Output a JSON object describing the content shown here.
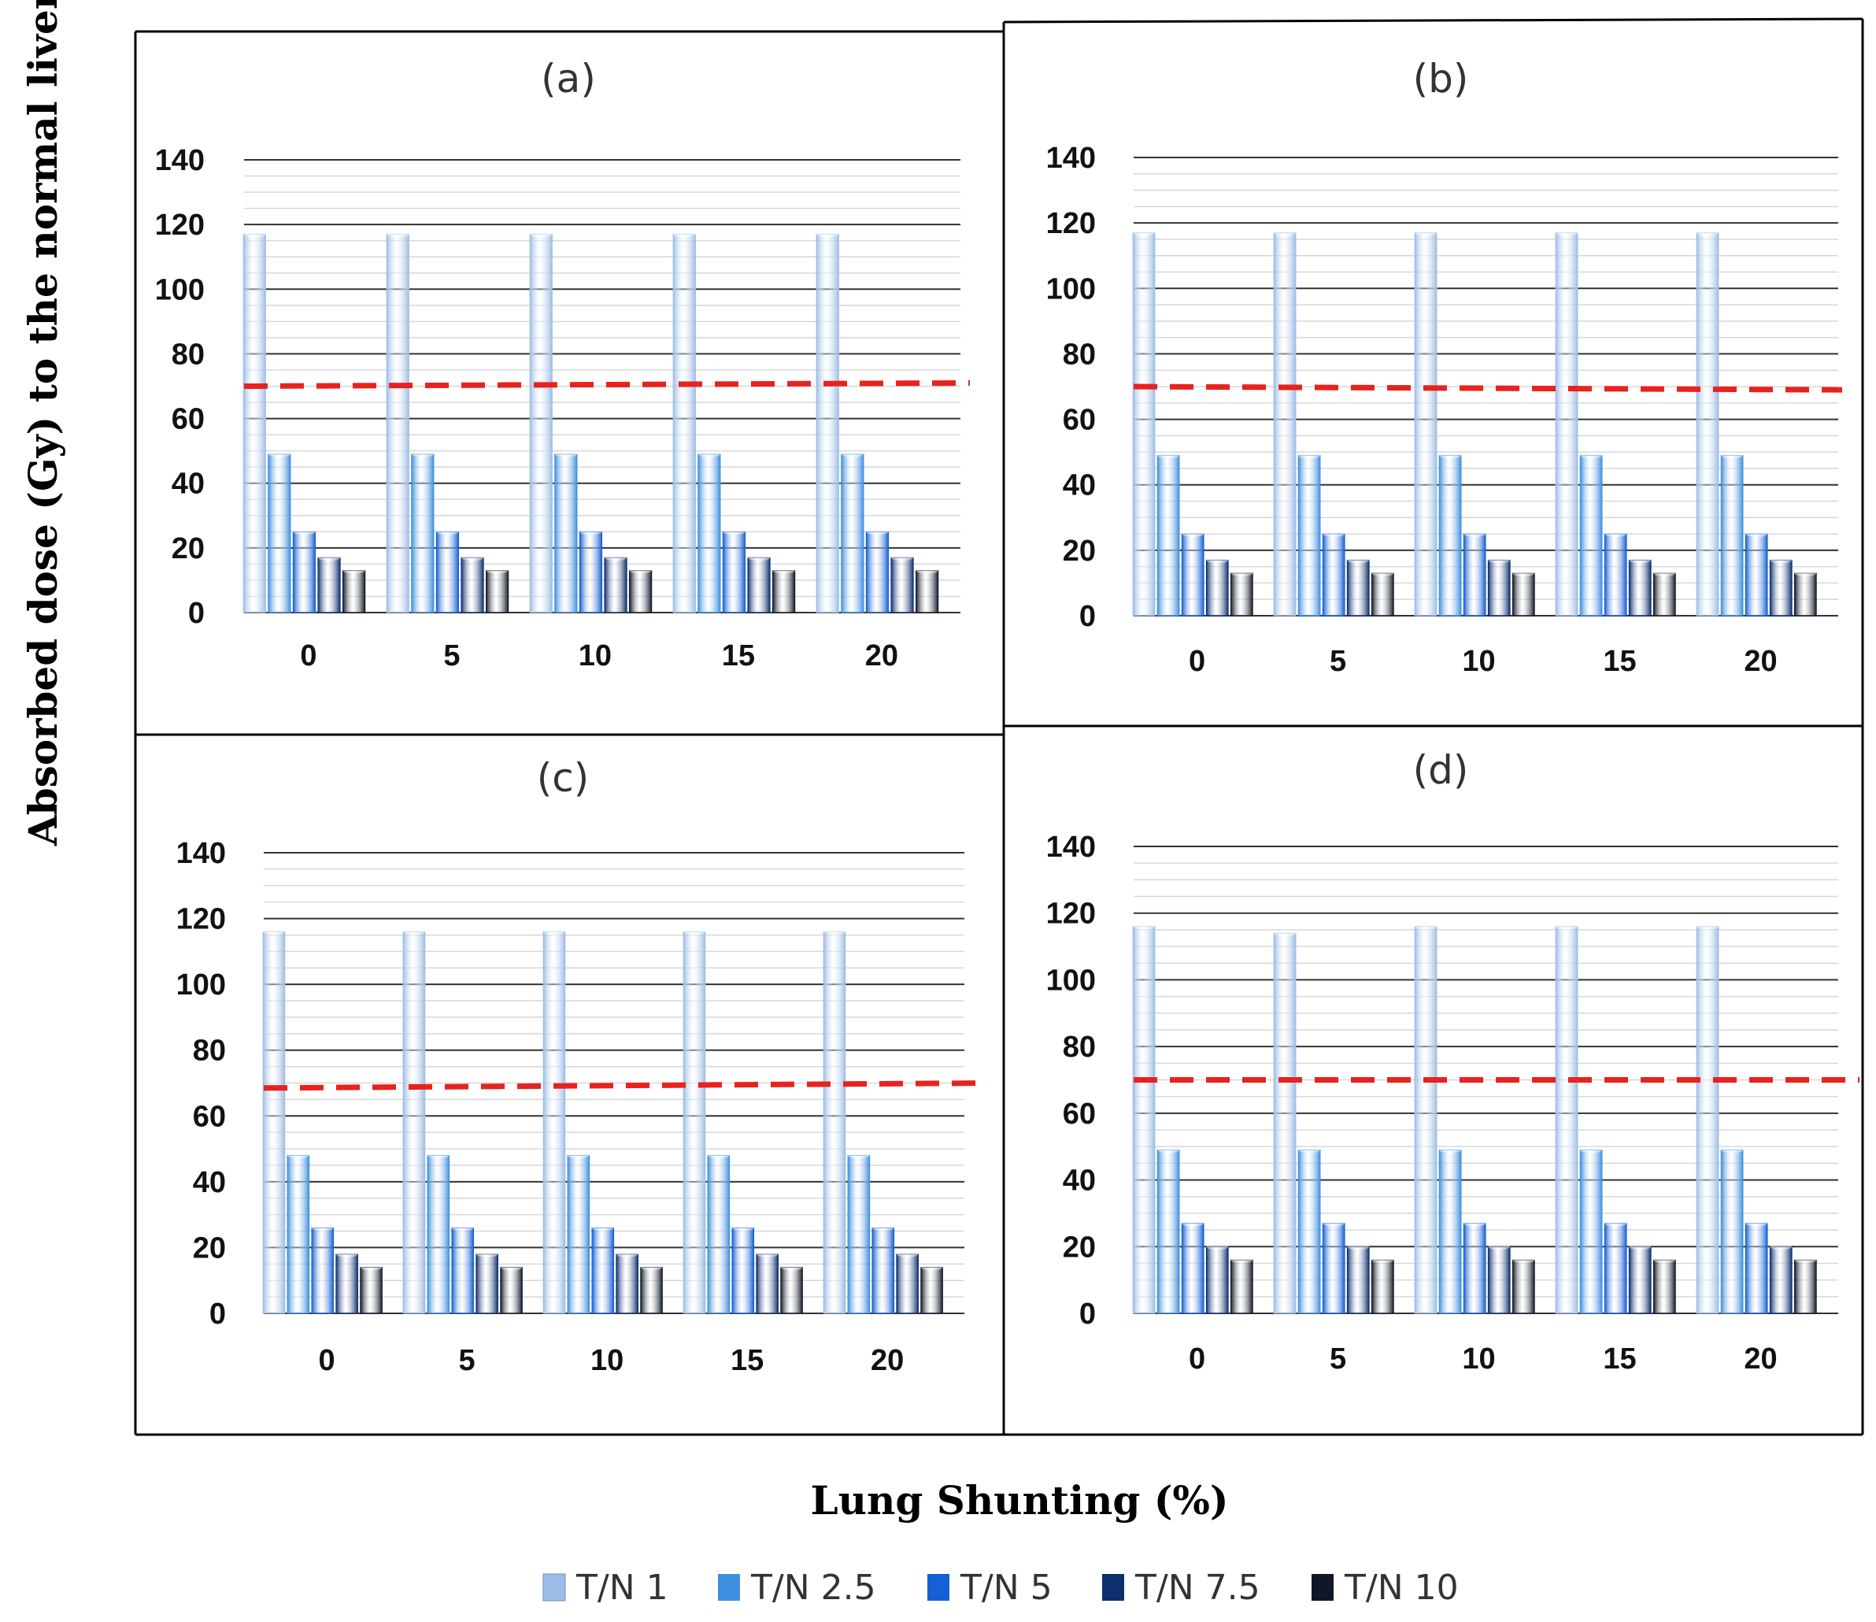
{
  "colors": {
    "series": [
      "#9dbde6",
      "#3f8fe0",
      "#1560d4",
      "#0e2f6e",
      "#101828"
    ],
    "threshold": "#e8221e",
    "grid": "#333333"
  },
  "axes": {
    "ylabel": "Absorbed dose (Gy) to the normal liver",
    "xlabel": "Lung Shunting (%)"
  },
  "chart_data": [
    {
      "type": "bar",
      "title": "(a)",
      "categories": [
        "0",
        "5",
        "10",
        "15",
        "20"
      ],
      "yticks": [
        "0",
        "20",
        "40",
        "60",
        "80",
        "100",
        "120",
        "140"
      ],
      "ylim": [
        0,
        140
      ],
      "series": [
        {
          "name": "T/N 1",
          "values": [
            117,
            117,
            117,
            117,
            117
          ]
        },
        {
          "name": "T/N 2.5",
          "values": [
            49,
            49,
            49,
            49,
            49
          ]
        },
        {
          "name": "T/N 5",
          "values": [
            25,
            25,
            25,
            25,
            25
          ]
        },
        {
          "name": "T/N 7.5",
          "values": [
            17,
            17,
            17,
            17,
            17
          ]
        },
        {
          "name": "T/N 10",
          "values": [
            13,
            13,
            13,
            13,
            13
          ]
        }
      ],
      "threshold": {
        "start": 70,
        "end": 71
      }
    },
    {
      "type": "bar",
      "title": "(b)",
      "categories": [
        "0",
        "5",
        "10",
        "15",
        "20"
      ],
      "yticks": [
        "0",
        "20",
        "40",
        "60",
        "80",
        "100",
        "120",
        "140"
      ],
      "ylim": [
        0,
        140
      ],
      "series": [
        {
          "name": "T/N 1",
          "values": [
            117,
            117,
            117,
            117,
            117
          ]
        },
        {
          "name": "T/N 2.5",
          "values": [
            49,
            49,
            49,
            49,
            49
          ]
        },
        {
          "name": "T/N 5",
          "values": [
            25,
            25,
            25,
            25,
            25
          ]
        },
        {
          "name": "T/N 7.5",
          "values": [
            17,
            17,
            17,
            17,
            17
          ]
        },
        {
          "name": "T/N 10",
          "values": [
            13,
            13,
            13,
            13,
            13
          ]
        }
      ],
      "threshold": {
        "start": 70,
        "end": 69
      }
    },
    {
      "type": "bar",
      "title": "(c)",
      "categories": [
        "0",
        "5",
        "10",
        "15",
        "20"
      ],
      "yticks": [
        "0",
        "20",
        "40",
        "60",
        "80",
        "100",
        "120",
        "140"
      ],
      "ylim": [
        0,
        140
      ],
      "series": [
        {
          "name": "T/N 1",
          "values": [
            116,
            116,
            116,
            116,
            116
          ]
        },
        {
          "name": "T/N 2.5",
          "values": [
            48,
            48,
            48,
            48,
            48
          ]
        },
        {
          "name": "T/N 5",
          "values": [
            26,
            26,
            26,
            26,
            26
          ]
        },
        {
          "name": "T/N 7.5",
          "values": [
            18,
            18,
            18,
            18,
            18
          ]
        },
        {
          "name": "T/N 10",
          "values": [
            14,
            14,
            14,
            14,
            14
          ]
        }
      ],
      "threshold": {
        "start": 68.5,
        "end": 70
      }
    },
    {
      "type": "bar",
      "title": "(d)",
      "categories": [
        "0",
        "5",
        "10",
        "15",
        "20"
      ],
      "yticks": [
        "0",
        "20",
        "40",
        "60",
        "80",
        "100",
        "120",
        "140"
      ],
      "ylim": [
        0,
        140
      ],
      "series": [
        {
          "name": "T/N 1",
          "values": [
            116,
            114,
            116,
            116,
            116
          ]
        },
        {
          "name": "T/N 2.5",
          "values": [
            49,
            49,
            49,
            49,
            49
          ]
        },
        {
          "name": "T/N 5",
          "values": [
            27,
            27,
            27,
            27,
            27
          ]
        },
        {
          "name": "T/N 7.5",
          "values": [
            20,
            20,
            20,
            20,
            20
          ]
        },
        {
          "name": "T/N 10",
          "values": [
            16,
            16,
            16,
            16,
            16
          ]
        }
      ],
      "threshold": {
        "start": 70,
        "end": 70
      }
    }
  ],
  "legend": {
    "items": [
      "T/N 1",
      "T/N 2.5",
      "T/N 5",
      "T/N 7.5",
      "T/N 10"
    ]
  }
}
